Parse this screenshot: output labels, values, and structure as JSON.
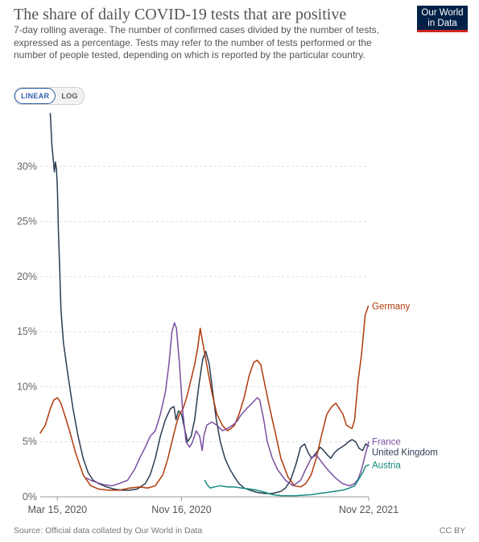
{
  "header": {
    "title": "The share of daily COVID-19 tests that are positive",
    "subtitle": "7-day rolling average. The number of confirmed cases divided by the number of tests, expressed as a percentage. Tests may refer to the number of tests performed or the number of people tested, depending on which is reported by the particular country.",
    "logo_line1": "Our World",
    "logo_line2": "in Data"
  },
  "controls": {
    "linear_label": "LINEAR",
    "log_label": "LOG",
    "selected": "LINEAR"
  },
  "footer": {
    "source": "Source: Official data collated by Our World in Data",
    "license": "CC BY"
  },
  "chart_data": {
    "type": "line",
    "x_type": "date",
    "x_range": [
      "2020-02-10",
      "2021-11-22"
    ],
    "ylim": [
      0,
      35
    ],
    "yticks": [
      0,
      5,
      10,
      15,
      20,
      25,
      30
    ],
    "ytick_labels": [
      "0%",
      "5%",
      "10%",
      "15%",
      "20%",
      "25%",
      "30%"
    ],
    "xtick_dates": [
      "2020-03-15",
      "2020-11-16",
      "2021-11-22"
    ],
    "xtick_labels": [
      "Mar 15, 2020",
      "Nov 16, 2020",
      "Nov 22, 2021"
    ],
    "grid": "horizontal dashed",
    "legend": "end-of-line labels",
    "series": [
      {
        "name": "United Kingdom",
        "color": "#2a3d52",
        "points": [
          [
            "2020-03-01",
            34.8
          ],
          [
            "2020-03-04",
            32
          ],
          [
            "2020-03-07",
            30.5
          ],
          [
            "2020-03-09",
            29.5
          ],
          [
            "2020-03-11",
            30.4
          ],
          [
            "2020-03-13",
            29.8
          ],
          [
            "2020-03-15",
            28
          ],
          [
            "2020-03-17",
            24
          ],
          [
            "2020-03-19",
            21.5
          ],
          [
            "2020-03-22",
            17
          ],
          [
            "2020-03-27",
            14
          ],
          [
            "2020-04-05",
            11
          ],
          [
            "2020-04-15",
            8
          ],
          [
            "2020-04-25",
            5.5
          ],
          [
            "2020-05-05",
            3.5
          ],
          [
            "2020-05-15",
            2.2
          ],
          [
            "2020-05-25",
            1.5
          ],
          [
            "2020-06-05",
            1.2
          ],
          [
            "2020-06-20",
            0.9
          ],
          [
            "2020-07-05",
            0.7
          ],
          [
            "2020-07-20",
            0.6
          ],
          [
            "2020-08-05",
            0.6
          ],
          [
            "2020-08-20",
            0.7
          ],
          [
            "2020-09-05",
            1.2
          ],
          [
            "2020-09-15",
            2
          ],
          [
            "2020-09-25",
            3.5
          ],
          [
            "2020-10-05",
            5.5
          ],
          [
            "2020-10-15",
            7
          ],
          [
            "2020-10-25",
            8
          ],
          [
            "2020-11-01",
            8.2
          ],
          [
            "2020-11-05",
            7
          ],
          [
            "2020-11-10",
            7.8
          ],
          [
            "2020-11-16",
            7.5
          ],
          [
            "2020-11-22",
            6.2
          ],
          [
            "2020-11-28",
            5
          ],
          [
            "2020-12-05",
            5.5
          ],
          [
            "2020-12-12",
            7
          ],
          [
            "2020-12-20",
            10
          ],
          [
            "2020-12-28",
            12.5
          ],
          [
            "2021-01-03",
            13.2
          ],
          [
            "2021-01-10",
            12
          ],
          [
            "2021-01-17",
            9.5
          ],
          [
            "2021-01-24",
            7
          ],
          [
            "2021-02-01",
            5
          ],
          [
            "2021-02-10",
            3.5
          ],
          [
            "2021-02-20",
            2.5
          ],
          [
            "2021-03-01",
            1.8
          ],
          [
            "2021-03-10",
            1.2
          ],
          [
            "2021-03-20",
            0.8
          ],
          [
            "2021-04-01",
            0.6
          ],
          [
            "2021-04-15",
            0.4
          ],
          [
            "2021-05-01",
            0.3
          ],
          [
            "2021-05-15",
            0.3
          ],
          [
            "2021-06-01",
            0.5
          ],
          [
            "2021-06-10",
            0.8
          ],
          [
            "2021-06-20",
            1.5
          ],
          [
            "2021-07-01",
            3
          ],
          [
            "2021-07-10",
            4.5
          ],
          [
            "2021-07-18",
            4.8
          ],
          [
            "2021-07-25",
            4
          ],
          [
            "2021-08-01",
            3.5
          ],
          [
            "2021-08-10",
            4
          ],
          [
            "2021-08-18",
            4.5
          ],
          [
            "2021-08-25",
            4.2
          ],
          [
            "2021-09-01",
            3.8
          ],
          [
            "2021-09-08",
            3.5
          ],
          [
            "2021-09-15",
            4
          ],
          [
            "2021-09-22",
            4.3
          ],
          [
            "2021-09-29",
            4.5
          ],
          [
            "2021-10-06",
            4.7
          ],
          [
            "2021-10-13",
            5
          ],
          [
            "2021-10-20",
            5.2
          ],
          [
            "2021-10-27",
            5
          ],
          [
            "2021-11-03",
            4.4
          ],
          [
            "2021-11-10",
            4.2
          ],
          [
            "2021-11-16",
            4.8
          ],
          [
            "2021-11-22",
            4.6
          ]
        ]
      },
      {
        "name": "Germany",
        "color": "#b03a0a",
        "points": [
          [
            "2020-02-10",
            5.8
          ],
          [
            "2020-02-20",
            6.5
          ],
          [
            "2020-03-01",
            8
          ],
          [
            "2020-03-08",
            8.8
          ],
          [
            "2020-03-15",
            9
          ],
          [
            "2020-03-22",
            8.5
          ],
          [
            "2020-03-29",
            7.5
          ],
          [
            "2020-04-08",
            6
          ],
          [
            "2020-04-20",
            4
          ],
          [
            "2020-05-05",
            2
          ],
          [
            "2020-05-20",
            1
          ],
          [
            "2020-06-05",
            0.7
          ],
          [
            "2020-06-25",
            0.6
          ],
          [
            "2020-07-15",
            0.6
          ],
          [
            "2020-08-05",
            0.8
          ],
          [
            "2020-08-25",
            0.9
          ],
          [
            "2020-09-10",
            0.8
          ],
          [
            "2020-09-25",
            1
          ],
          [
            "2020-10-10",
            2
          ],
          [
            "2020-10-20",
            3.5
          ],
          [
            "2020-10-28",
            5
          ],
          [
            "2020-11-05",
            6.5
          ],
          [
            "2020-11-12",
            7.5
          ],
          [
            "2020-11-19",
            8
          ],
          [
            "2020-11-26",
            9
          ],
          [
            "2020-12-04",
            10.5
          ],
          [
            "2020-12-12",
            12
          ],
          [
            "2020-12-18",
            13.5
          ],
          [
            "2020-12-23",
            15.3
          ],
          [
            "2020-12-28",
            14
          ],
          [
            "2021-01-05",
            12
          ],
          [
            "2021-01-15",
            9.5
          ],
          [
            "2021-01-25",
            7.5
          ],
          [
            "2021-02-05",
            6.5
          ],
          [
            "2021-02-15",
            6
          ],
          [
            "2021-02-22",
            6.2
          ],
          [
            "2021-03-01",
            6.5
          ],
          [
            "2021-03-10",
            7.5
          ],
          [
            "2021-03-20",
            9
          ],
          [
            "2021-03-30",
            11
          ],
          [
            "2021-04-08",
            12.2
          ],
          [
            "2021-04-15",
            12.4
          ],
          [
            "2021-04-22",
            12
          ],
          [
            "2021-05-01",
            10
          ],
          [
            "2021-05-10",
            8
          ],
          [
            "2021-05-20",
            6
          ],
          [
            "2021-06-01",
            3.5
          ],
          [
            "2021-06-15",
            1.8
          ],
          [
            "2021-06-28",
            1
          ],
          [
            "2021-07-10",
            0.9
          ],
          [
            "2021-07-20",
            1.2
          ],
          [
            "2021-07-31",
            2
          ],
          [
            "2021-08-10",
            3.5
          ],
          [
            "2021-08-20",
            5.5
          ],
          [
            "2021-08-31",
            7.5
          ],
          [
            "2021-09-10",
            8.2
          ],
          [
            "2021-09-18",
            8.5
          ],
          [
            "2021-09-25",
            8
          ],
          [
            "2021-10-02",
            7.5
          ],
          [
            "2021-10-09",
            6.5
          ],
          [
            "2021-10-16",
            6.3
          ],
          [
            "2021-10-20",
            6.2
          ],
          [
            "2021-10-25",
            7
          ],
          [
            "2021-11-01",
            10.5
          ],
          [
            "2021-11-08",
            13
          ],
          [
            "2021-11-15",
            16.5
          ],
          [
            "2021-11-21",
            17.3
          ]
        ]
      },
      {
        "name": "France",
        "color": "#7b4ea1",
        "points": [
          [
            "2020-05-12",
            1.7
          ],
          [
            "2020-05-20",
            1.5
          ],
          [
            "2020-06-01",
            1.3
          ],
          [
            "2020-06-15",
            1.1
          ],
          [
            "2020-07-01",
            1
          ],
          [
            "2020-07-15",
            1.2
          ],
          [
            "2020-08-01",
            1.5
          ],
          [
            "2020-08-15",
            2.5
          ],
          [
            "2020-08-25",
            3.5
          ],
          [
            "2020-09-05",
            4.5
          ],
          [
            "2020-09-15",
            5.5
          ],
          [
            "2020-09-25",
            6
          ],
          [
            "2020-10-05",
            7.5
          ],
          [
            "2020-10-15",
            9.5
          ],
          [
            "2020-10-22",
            12
          ],
          [
            "2020-10-28",
            15
          ],
          [
            "2020-11-02",
            15.8
          ],
          [
            "2020-11-06",
            15.3
          ],
          [
            "2020-11-12",
            12
          ],
          [
            "2020-11-18",
            8
          ],
          [
            "2020-11-25",
            5
          ],
          [
            "2020-12-02",
            4.5
          ],
          [
            "2020-12-08",
            5
          ],
          [
            "2020-12-15",
            6
          ],
          [
            "2020-12-22",
            5.5
          ],
          [
            "2020-12-27",
            4.2
          ],
          [
            "2020-12-30",
            5.5
          ],
          [
            "2021-01-05",
            6.5
          ],
          [
            "2021-01-15",
            6.8
          ],
          [
            "2021-01-25",
            6.5
          ],
          [
            "2021-02-05",
            6
          ],
          [
            "2021-02-15",
            6.2
          ],
          [
            "2021-02-25",
            6.5
          ],
          [
            "2021-03-05",
            6.8
          ],
          [
            "2021-03-15",
            7.5
          ],
          [
            "2021-03-25",
            8
          ],
          [
            "2021-04-05",
            8.5
          ],
          [
            "2021-04-15",
            9
          ],
          [
            "2021-04-20",
            8.8
          ],
          [
            "2021-04-28",
            7
          ],
          [
            "2021-05-05",
            5
          ],
          [
            "2021-05-15",
            3.5
          ],
          [
            "2021-05-25",
            2.5
          ],
          [
            "2021-06-10",
            1.5
          ],
          [
            "2021-06-25",
            1
          ],
          [
            "2021-07-10",
            1.5
          ],
          [
            "2021-07-20",
            2.5
          ],
          [
            "2021-07-31",
            3.5
          ],
          [
            "2021-08-10",
            3.8
          ],
          [
            "2021-08-20",
            3.2
          ],
          [
            "2021-09-01",
            2.5
          ],
          [
            "2021-09-15",
            1.8
          ],
          [
            "2021-10-01",
            1.2
          ],
          [
            "2021-10-15",
            1
          ],
          [
            "2021-10-25",
            1.2
          ],
          [
            "2021-11-01",
            1.6
          ],
          [
            "2021-11-08",
            2.5
          ],
          [
            "2021-11-15",
            3.8
          ],
          [
            "2021-11-22",
            5
          ]
        ]
      },
      {
        "name": "Austria",
        "color": "#158a7c",
        "points": [
          [
            "2021-01-01",
            1.5
          ],
          [
            "2021-01-06",
            1.1
          ],
          [
            "2021-01-12",
            0.8
          ],
          [
            "2021-01-20",
            0.9
          ],
          [
            "2021-02-01",
            1
          ],
          [
            "2021-02-15",
            0.9
          ],
          [
            "2021-03-01",
            0.9
          ],
          [
            "2021-03-15",
            0.8
          ],
          [
            "2021-04-01",
            0.7
          ],
          [
            "2021-04-15",
            0.6
          ],
          [
            "2021-05-01",
            0.4
          ],
          [
            "2021-05-15",
            0.2
          ],
          [
            "2021-06-01",
            0.1
          ],
          [
            "2021-06-15",
            0.1
          ],
          [
            "2021-07-01",
            0.1
          ],
          [
            "2021-07-15",
            0.15
          ],
          [
            "2021-08-01",
            0.2
          ],
          [
            "2021-08-15",
            0.3
          ],
          [
            "2021-09-01",
            0.4
          ],
          [
            "2021-09-15",
            0.5
          ],
          [
            "2021-10-01",
            0.6
          ],
          [
            "2021-10-15",
            0.8
          ],
          [
            "2021-10-25",
            1
          ],
          [
            "2021-11-01",
            1.5
          ],
          [
            "2021-11-10",
            2.2
          ],
          [
            "2021-11-16",
            2.8
          ],
          [
            "2021-11-22",
            2.9
          ]
        ]
      }
    ]
  }
}
